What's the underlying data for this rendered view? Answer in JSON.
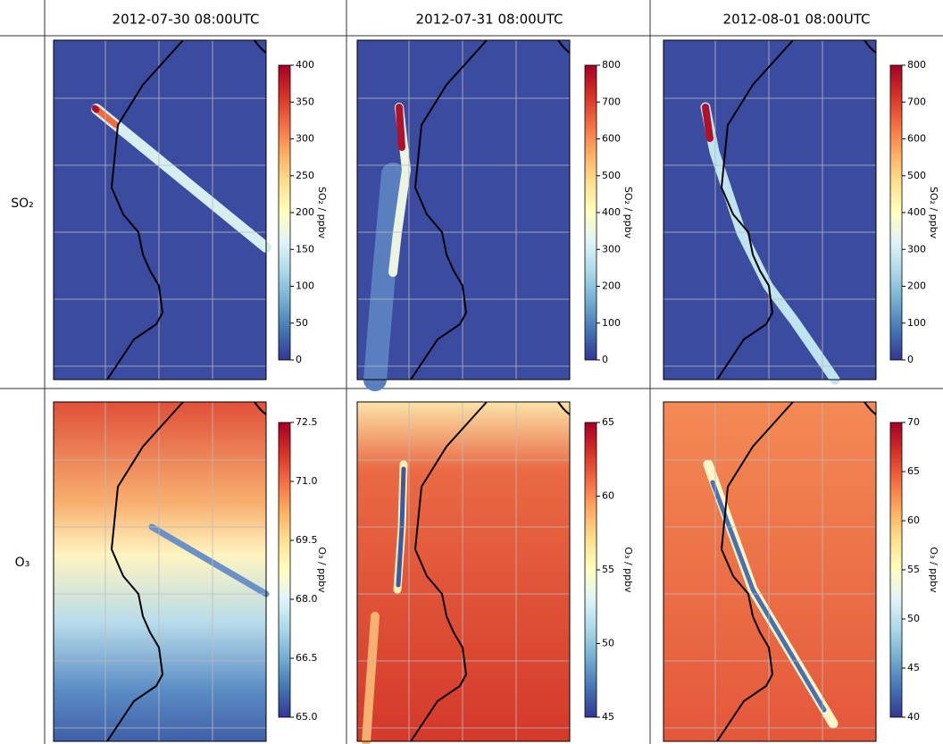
{
  "columns": [
    "2012-07-30 08:00UTC",
    "2012-07-31 08:00UTC",
    "2012-08-01 08:00UTC"
  ],
  "rows": [
    {
      "label": "SO₂",
      "panels": [
        {
          "colorbar": {
            "label": "SO₂ / ppbv",
            "lim": [
              0,
              400
            ],
            "ticks": [
              0,
              50,
              100,
              150,
              200,
              250,
              300,
              350,
              400
            ]
          }
        },
        {
          "colorbar": {
            "label": "SO₂ / ppbv",
            "lim": [
              0,
              800
            ],
            "ticks": [
              0,
              100,
              200,
              300,
              400,
              500,
              600,
              700,
              800
            ]
          }
        },
        {
          "colorbar": {
            "label": "SO₂ / ppbv",
            "lim": [
              0,
              800
            ],
            "ticks": [
              0,
              100,
              200,
              300,
              400,
              500,
              600,
              700,
              800
            ]
          }
        }
      ]
    },
    {
      "label": "O₃",
      "panels": [
        {
          "colorbar": {
            "label": "O₃ / ppbv",
            "lim": [
              65,
              72.5
            ],
            "ticks": [
              {
                "value": 65,
                "label": "65.0"
              },
              {
                "value": 66.5,
                "label": "66.5"
              },
              {
                "value": 68,
                "label": "68.0"
              },
              {
                "value": 69.5,
                "label": "69.5"
              },
              {
                "value": 71,
                "label": "71.0"
              },
              {
                "value": 72.5,
                "label": "72.5"
              }
            ]
          }
        },
        {
          "colorbar": {
            "label": "O₃ / ppbv",
            "lim": [
              45,
              65
            ],
            "ticks": [
              45,
              50,
              55,
              60,
              65
            ]
          }
        },
        {
          "colorbar": {
            "label": "O₃ / ppbv",
            "lim": [
              40,
              70
            ],
            "ticks": [
              40,
              45,
              50,
              55,
              60,
              65,
              70
            ]
          }
        }
      ]
    }
  ]
}
